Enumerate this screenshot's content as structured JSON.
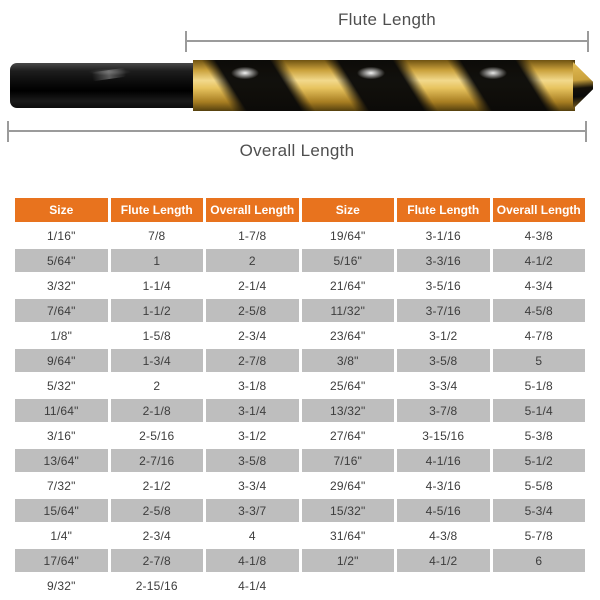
{
  "diagram": {
    "flute_length_label": "Flute Length",
    "overall_length_label": "Overall Length",
    "bit_description": "black-and-gold twist drill bit"
  },
  "colors": {
    "header_bg": "#E8731E",
    "header_text": "#FFFFFF",
    "row_alt_bg": "#BEBEBE",
    "body_text": "#3D3D3D",
    "dimension_line": "#9B9B9B",
    "label_text": "#4F4F4F",
    "flute_gold": "#D9A843",
    "shank_black": "#0A0A0A"
  },
  "table": {
    "headers": [
      "Size",
      "Flute Length",
      "Overall Length",
      "Size",
      "Flute Length",
      "Overall Length"
    ],
    "rows": [
      [
        "1/16\"",
        "7/8",
        "1-7/8",
        "19/64\"",
        "3-1/16",
        "4-3/8"
      ],
      [
        "5/64\"",
        "1",
        "2",
        "5/16\"",
        "3-3/16",
        "4-1/2"
      ],
      [
        "3/32\"",
        "1-1/4",
        "2-1/4",
        "21/64\"",
        "3-5/16",
        "4-3/4"
      ],
      [
        "7/64\"",
        "1-1/2",
        "2-5/8",
        "11/32\"",
        "3-7/16",
        "4-5/8"
      ],
      [
        "1/8\"",
        "1-5/8",
        "2-3/4",
        "23/64\"",
        "3-1/2",
        "4-7/8"
      ],
      [
        "9/64\"",
        "1-3/4",
        "2-7/8",
        "3/8\"",
        "3-5/8",
        "5"
      ],
      [
        "5/32\"",
        "2",
        "3-1/8",
        "25/64\"",
        "3-3/4",
        "5-1/8"
      ],
      [
        "11/64\"",
        "2-1/8",
        "3-1/4",
        "13/32\"",
        "3-7/8",
        "5-1/4"
      ],
      [
        "3/16\"",
        "2-5/16",
        "3-1/2",
        "27/64\"",
        "3-15/16",
        "5-3/8"
      ],
      [
        "13/64\"",
        "2-7/16",
        "3-5/8",
        "7/16\"",
        "4-1/16",
        "5-1/2"
      ],
      [
        "7/32\"",
        "2-1/2",
        "3-3/4",
        "29/64\"",
        "4-3/16",
        "5-5/8"
      ],
      [
        "15/64\"",
        "2-5/8",
        "3-3/7",
        "15/32\"",
        "4-5/16",
        "5-3/4"
      ],
      [
        "1/4\"",
        "2-3/4",
        "4",
        "31/64\"",
        "4-3/8",
        "5-7/8"
      ],
      [
        "17/64\"",
        "2-7/8",
        "4-1/8",
        "1/2\"",
        "4-1/2",
        "6"
      ],
      [
        "9/32\"",
        "2-15/16",
        "4-1/4",
        "",
        "",
        ""
      ]
    ]
  }
}
